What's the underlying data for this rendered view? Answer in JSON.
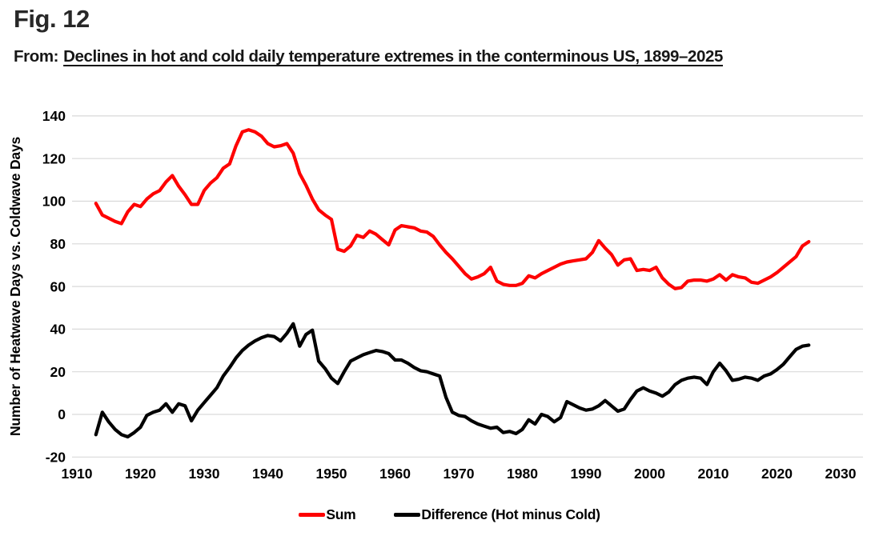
{
  "header": {
    "figure_label": "Fig. 12",
    "source_prefix": "From:",
    "source_title": "Declines in hot and cold daily temperature extremes in the conterminous US, 1899–2025"
  },
  "chart_data": {
    "type": "line",
    "title": "",
    "xlabel": "",
    "ylabel": "Number of Heatwave Days vs. Coldwave Days",
    "xlim": [
      1905,
      2033
    ],
    "ylim": [
      -20,
      140
    ],
    "xticks": [
      1910,
      1920,
      1930,
      1940,
      1950,
      1960,
      1970,
      1980,
      1990,
      2000,
      2010,
      2020,
      2030
    ],
    "yticks": [
      140,
      120,
      100,
      80,
      60,
      40,
      20,
      0,
      -20
    ],
    "grid": "horizontal-only",
    "gridline_color": "#d9d9d9",
    "legend_position": "bottom",
    "x": [
      1913,
      1914,
      1915,
      1916,
      1917,
      1918,
      1919,
      1920,
      1921,
      1922,
      1923,
      1924,
      1925,
      1926,
      1927,
      1928,
      1929,
      1930,
      1931,
      1932,
      1933,
      1934,
      1935,
      1936,
      1937,
      1938,
      1939,
      1940,
      1941,
      1942,
      1943,
      1944,
      1945,
      1946,
      1947,
      1948,
      1949,
      1950,
      1951,
      1952,
      1953,
      1954,
      1955,
      1956,
      1957,
      1958,
      1959,
      1960,
      1961,
      1962,
      1963,
      1964,
      1965,
      1966,
      1967,
      1968,
      1969,
      1970,
      1971,
      1972,
      1973,
      1974,
      1975,
      1976,
      1977,
      1978,
      1979,
      1980,
      1981,
      1982,
      1983,
      1984,
      1985,
      1986,
      1987,
      1988,
      1989,
      1990,
      1991,
      1992,
      1993,
      1994,
      1995,
      1996,
      1997,
      1998,
      1999,
      2000,
      2001,
      2002,
      2003,
      2004,
      2005,
      2006,
      2007,
      2008,
      2009,
      2010,
      2011,
      2012,
      2013,
      2014,
      2015,
      2016,
      2017,
      2018,
      2019,
      2020,
      2021,
      2022,
      2023,
      2024,
      2025
    ],
    "series": [
      {
        "name": "Sum",
        "color": "#fe0000",
        "values": [
          99,
          93.5,
          92,
          90.5,
          89.5,
          95,
          98.5,
          97.5,
          101,
          103.5,
          105,
          109,
          112,
          107,
          103,
          98.5,
          98.5,
          105,
          108.5,
          111,
          115.5,
          117.5,
          126,
          132.5,
          133.5,
          132.5,
          130.5,
          127,
          125.5,
          126,
          127,
          122.5,
          113,
          107.5,
          101,
          96,
          93.5,
          91.5,
          77.5,
          76.5,
          79,
          84,
          83,
          86,
          84.5,
          82,
          79.5,
          86.5,
          88.5,
          88,
          87.5,
          86,
          85.5,
          83.5,
          79.5,
          76,
          73,
          69.5,
          66,
          63.5,
          64.5,
          66,
          69,
          62.5,
          61,
          60.5,
          60.5,
          61.5,
          65,
          64,
          66,
          67.5,
          69,
          70.5,
          71.5,
          72,
          72.5,
          73,
          76,
          81.5,
          78,
          75,
          70,
          72.5,
          73,
          67.5,
          68,
          67.5,
          69,
          64,
          61,
          59,
          59.5,
          62.5,
          63,
          63,
          62.5,
          63.5,
          65.5,
          63,
          65.5,
          64.5,
          64,
          62,
          61.5,
          63,
          64.5,
          66.5,
          69,
          71.5,
          74,
          79,
          81
        ]
      },
      {
        "name": "Difference (Hot minus Cold)",
        "color": "#000000",
        "values": [
          -9.5,
          1,
          -3.5,
          -7,
          -9.5,
          -10.5,
          -8.5,
          -6,
          -0.5,
          1,
          2,
          5,
          1,
          5,
          4,
          -3,
          2,
          5.5,
          9,
          12.5,
          18,
          22,
          26.5,
          30,
          32.5,
          34.5,
          36,
          37,
          36.5,
          34.5,
          38,
          42.5,
          32,
          37.5,
          39.5,
          25,
          21.5,
          17,
          14.5,
          20,
          25,
          26.5,
          28,
          29,
          30,
          29.5,
          28.5,
          25.5,
          25.5,
          24,
          22,
          20.5,
          20,
          19,
          18,
          8,
          1,
          -0.5,
          -1,
          -3,
          -4.5,
          -5.5,
          -6.5,
          -6,
          -8.5,
          -8,
          -9,
          -7,
          -2.5,
          -4.5,
          0,
          -1,
          -3.5,
          -1.5,
          6,
          4.5,
          3,
          2,
          2.5,
          4,
          6.5,
          4,
          1.5,
          2.5,
          7,
          11,
          12.5,
          11,
          10,
          8.5,
          10.5,
          14,
          16,
          17,
          17.5,
          17,
          14,
          20,
          24,
          20.5,
          16,
          16.5,
          17.5,
          17,
          16,
          18,
          19,
          21,
          23.5,
          27,
          30.5,
          32,
          32.5
        ]
      }
    ]
  }
}
